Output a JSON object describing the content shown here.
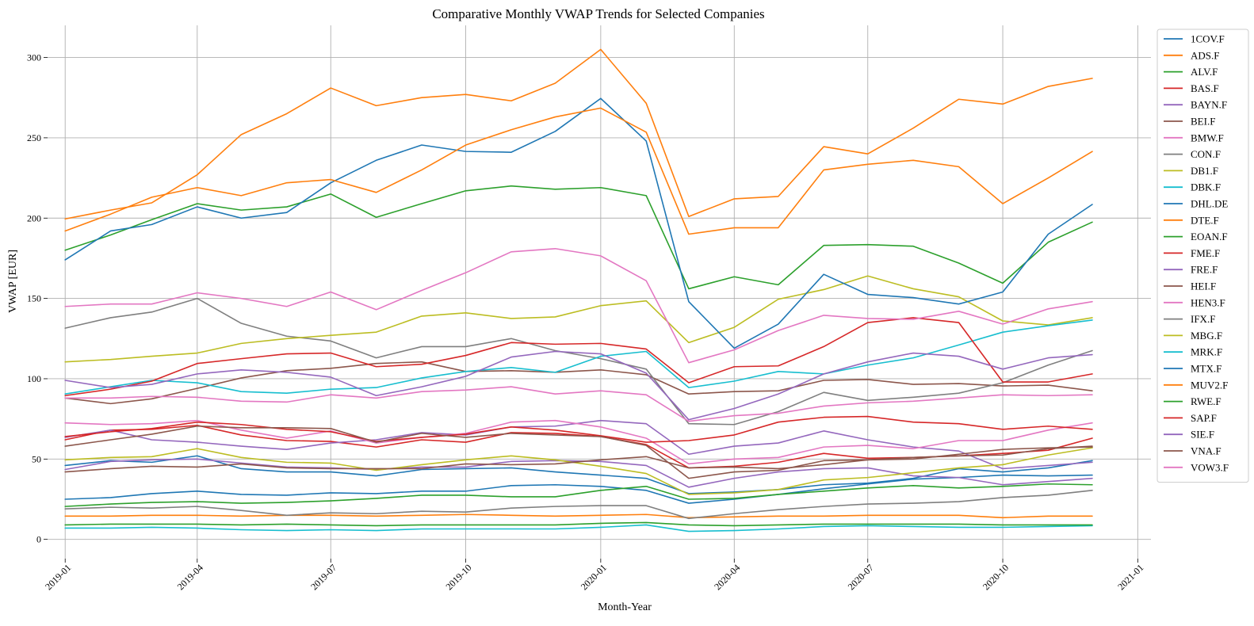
{
  "chart_data": {
    "type": "line",
    "title": "Comparative Monthly VWAP Trends for Selected Companies",
    "xlabel": "Month-Year",
    "ylabel": "VWAP [EUR]",
    "x": [
      "2019-01",
      "2019-02",
      "2019-03",
      "2019-04",
      "2019-05",
      "2019-06",
      "2019-07",
      "2019-08",
      "2019-09",
      "2019-10",
      "2019-11",
      "2019-12",
      "2020-01",
      "2020-02",
      "2020-03",
      "2020-04",
      "2020-05",
      "2020-06",
      "2020-07",
      "2020-08",
      "2020-09",
      "2020-10",
      "2020-11",
      "2020-12"
    ],
    "xlim": [
      "2018-12-20",
      "2021-01-10"
    ],
    "ylim": [
      -12,
      320
    ],
    "x_ticks": [
      "2019-01",
      "2019-04",
      "2019-07",
      "2019-10",
      "2020-01",
      "2020-04",
      "2020-07",
      "2020-10",
      "2021-01"
    ],
    "y_ticks": [
      0,
      50,
      100,
      150,
      200,
      250,
      300
    ],
    "grid": true,
    "legend_position": "right",
    "series": [
      {
        "name": "1COV.F",
        "color": "#1f77b4",
        "values": [
          46,
          49,
          48,
          52,
          44,
          42,
          42,
          39.5,
          43.5,
          44,
          44.5,
          42,
          40,
          38,
          28.5,
          29.5,
          31,
          34,
          35,
          38,
          44,
          42,
          44.5,
          49
        ]
      },
      {
        "name": "ADS.F",
        "color": "#ff7f0e",
        "values": [
          199.5,
          205,
          209.5,
          227,
          252,
          265,
          281,
          270,
          275,
          277,
          273,
          284,
          305,
          271.5,
          201,
          212,
          213.5,
          244.5,
          240,
          256,
          274,
          271,
          282,
          287
        ]
      },
      {
        "name": "ALV.F",
        "color": "#2ca02c",
        "values": [
          180,
          189.5,
          199,
          209,
          205,
          207,
          215,
          200.5,
          209,
          217,
          220,
          218,
          219,
          214,
          156,
          163.5,
          158.5,
          183,
          183.5,
          182.5,
          172,
          159.5,
          185,
          197.5
        ]
      },
      {
        "name": "BAS.F",
        "color": "#d62728",
        "values": [
          62,
          68,
          68.5,
          71,
          65,
          61.5,
          61,
          57.5,
          62,
          60.5,
          66.5,
          66,
          64,
          59,
          44.5,
          45.5,
          48,
          53.5,
          50.5,
          51,
          52,
          53.5,
          55.5,
          63
        ]
      },
      {
        "name": "BAYN.F",
        "color": "#9467bd",
        "values": [
          63.5,
          68,
          62,
          60.5,
          58,
          56,
          60,
          62,
          66.5,
          65,
          70,
          70.5,
          74,
          72,
          53,
          58,
          60,
          67.5,
          62,
          57.5,
          55,
          44,
          46,
          48
        ]
      },
      {
        "name": "BEI.F",
        "color": "#8c564b",
        "values": [
          88,
          84.5,
          87.5,
          94,
          100.5,
          105,
          106.5,
          109.5,
          110.5,
          104.5,
          105,
          104,
          105.5,
          102.5,
          90.5,
          92,
          92.5,
          99,
          99.5,
          96.5,
          97,
          95.5,
          96,
          92.5
        ]
      },
      {
        "name": "BMW.F",
        "color": "#e377c2",
        "values": [
          72.5,
          71.5,
          72,
          74,
          68,
          63,
          67.5,
          60,
          63.5,
          66,
          73,
          74,
          70,
          63,
          47,
          50,
          51,
          57.5,
          58.5,
          56.5,
          61.5,
          61.5,
          68,
          72.5
        ]
      },
      {
        "name": "CON.F",
        "color": "#7f7f7f",
        "values": [
          131.5,
          138,
          141.5,
          150,
          134.5,
          126.5,
          123.5,
          113,
          120,
          120,
          125,
          117.5,
          112.5,
          106,
          72,
          71.5,
          79.5,
          91.5,
          86.5,
          88.5,
          91,
          97.5,
          108.5,
          117.5
        ]
      },
      {
        "name": "DB1.F",
        "color": "#bcbd22",
        "values": [
          110.5,
          112,
          114,
          116,
          122,
          125,
          127,
          129,
          139,
          141,
          137.5,
          138.5,
          145.5,
          148.5,
          122.5,
          132,
          149.5,
          155.5,
          164,
          156,
          151,
          136,
          133.5,
          138
        ]
      },
      {
        "name": "DBK.F",
        "color": "#17becf",
        "values": [
          7,
          7,
          7.5,
          7,
          6,
          5.5,
          6,
          5.5,
          6.5,
          6.5,
          6.5,
          6.5,
          7.5,
          9,
          5,
          5.5,
          6.5,
          8,
          8.5,
          8,
          7.5,
          7.5,
          8,
          8.5
        ]
      },
      {
        "name": "DHL.DE",
        "color": "#1f77b4",
        "values": [
          25,
          26,
          28.5,
          30,
          28,
          27.5,
          29,
          28.5,
          30,
          30,
          33.5,
          34,
          33,
          30.5,
          22.5,
          25,
          28,
          31.5,
          34.5,
          37.5,
          38.5,
          40,
          39.5,
          40
        ]
      },
      {
        "name": "DTE.F",
        "color": "#ff7f0e",
        "values": [
          14.5,
          14.5,
          15,
          15,
          14.5,
          15,
          15,
          14.5,
          15,
          15.5,
          15,
          14.5,
          15,
          15.5,
          13.5,
          14,
          14.5,
          14.5,
          15,
          15,
          15,
          13.5,
          14.5,
          14.5
        ]
      },
      {
        "name": "EOAN.F",
        "color": "#2ca02c",
        "values": [
          9,
          9.5,
          9.5,
          9.5,
          9,
          9.5,
          9,
          8.5,
          9,
          9,
          9,
          9,
          10,
          10.5,
          9,
          8.5,
          9,
          9.5,
          9.5,
          9.5,
          9.5,
          9,
          9,
          9
        ]
      },
      {
        "name": "FME.F",
        "color": "#d62728",
        "values": [
          64,
          67,
          69,
          73,
          71.5,
          68.5,
          67,
          61,
          63.5,
          65.5,
          70,
          68,
          64.5,
          60.5,
          61.5,
          65,
          73,
          76,
          76.5,
          73,
          72,
          68.5,
          70.5,
          68.5
        ]
      },
      {
        "name": "FRE.F",
        "color": "#9467bd",
        "values": [
          43.5,
          48.5,
          49.5,
          50,
          47.5,
          45,
          44.5,
          43.5,
          45,
          45,
          48.5,
          49,
          48.5,
          46,
          32.5,
          38,
          42,
          44,
          44.5,
          39.5,
          38.5,
          34,
          36,
          38
        ]
      },
      {
        "name": "HEI.F",
        "color": "#8c564b",
        "values": [
          58,
          62,
          65.5,
          70.5,
          69.5,
          69.5,
          69,
          60.5,
          66,
          63.5,
          66,
          65,
          64,
          58.5,
          38,
          42,
          43,
          49,
          49.5,
          51,
          52,
          52.5,
          56.5,
          58
        ]
      },
      {
        "name": "HEN3.F",
        "color": "#e377c2",
        "values": [
          88,
          88,
          89,
          88.5,
          86,
          85.5,
          90,
          88,
          92,
          93,
          95,
          90.5,
          92.5,
          90,
          73.5,
          77,
          78.5,
          83,
          85,
          86,
          88,
          90,
          89.5,
          90
        ]
      },
      {
        "name": "IFX.F",
        "color": "#7f7f7f",
        "values": [
          19,
          20,
          19.5,
          20.5,
          18,
          15,
          16.5,
          16,
          17.5,
          17,
          19.5,
          20.5,
          21,
          21,
          13,
          16,
          18.5,
          20.5,
          22,
          22.5,
          23.5,
          26,
          27.5,
          30.5
        ]
      },
      {
        "name": "MBG.F",
        "color": "#bcbd22",
        "values": [
          49.5,
          51,
          51.5,
          56.5,
          51,
          48,
          47.5,
          43,
          46.5,
          49.5,
          52,
          49.5,
          45.5,
          41,
          28,
          29,
          31,
          37,
          38.5,
          41.5,
          44.5,
          46.5,
          52.5,
          57
        ]
      },
      {
        "name": "MRK.F",
        "color": "#17becf",
        "values": [
          90.5,
          95,
          99,
          97.5,
          92,
          91,
          93.5,
          94.5,
          100.5,
          104.5,
          107,
          104,
          114,
          117,
          94.5,
          98.5,
          104.5,
          103,
          108.5,
          113,
          121,
          129,
          133,
          136.5
        ]
      },
      {
        "name": "MTX.F",
        "color": "#1f77b4",
        "values": [
          174,
          192,
          196,
          207,
          200,
          203.5,
          222,
          236,
          245.5,
          241.5,
          241,
          254,
          274.5,
          248,
          148,
          119,
          134,
          165,
          152.5,
          150.5,
          146.5,
          154,
          190,
          208.5
        ]
      },
      {
        "name": "MUV2.F",
        "color": "#ff7f0e",
        "values": [
          192,
          202.5,
          213,
          219,
          214,
          222,
          224,
          216,
          230,
          245.5,
          255,
          263,
          268.5,
          253.5,
          190,
          194,
          194,
          230,
          233.5,
          236,
          232,
          209,
          225,
          241.5
        ]
      },
      {
        "name": "RWE.F",
        "color": "#2ca02c",
        "values": [
          20.5,
          22,
          23,
          23.5,
          22.5,
          23,
          24,
          25.5,
          27.5,
          27.5,
          26.5,
          26.5,
          30.5,
          33,
          25,
          25.5,
          28,
          30,
          32,
          33.5,
          32,
          33,
          34.5,
          34
        ]
      },
      {
        "name": "SAP.F",
        "color": "#d62728",
        "values": [
          89.5,
          93.5,
          98.5,
          109.5,
          112.5,
          115.5,
          116,
          107.5,
          109,
          114.5,
          122.5,
          121.5,
          122,
          118.5,
          97.5,
          107.5,
          108,
          120,
          135,
          138,
          135,
          98,
          98,
          103
        ]
      },
      {
        "name": "SIE.F",
        "color": "#9467bd",
        "values": [
          99,
          94.5,
          96.5,
          103,
          105.5,
          104,
          101,
          89.5,
          95,
          101.5,
          113.5,
          117,
          115.5,
          103.5,
          74.5,
          81.5,
          90.5,
          103,
          110.5,
          116,
          114,
          106,
          113,
          115
        ]
      },
      {
        "name": "VNA.F",
        "color": "#8c564b",
        "values": [
          42,
          44,
          45.5,
          45,
          47,
          44.5,
          44,
          44,
          44,
          47,
          46.5,
          47,
          49.5,
          51.5,
          44.5,
          45,
          44,
          46.5,
          49.5,
          50,
          53,
          56,
          57,
          57.5
        ]
      },
      {
        "name": "VOW3.F",
        "color": "#e377c2",
        "values": [
          145,
          146.5,
          146.5,
          153.5,
          150,
          145,
          154,
          143,
          155,
          166,
          179,
          181,
          176.5,
          161,
          110,
          118,
          130,
          139.5,
          137.5,
          137,
          142,
          134,
          143.5,
          148
        ]
      }
    ]
  }
}
